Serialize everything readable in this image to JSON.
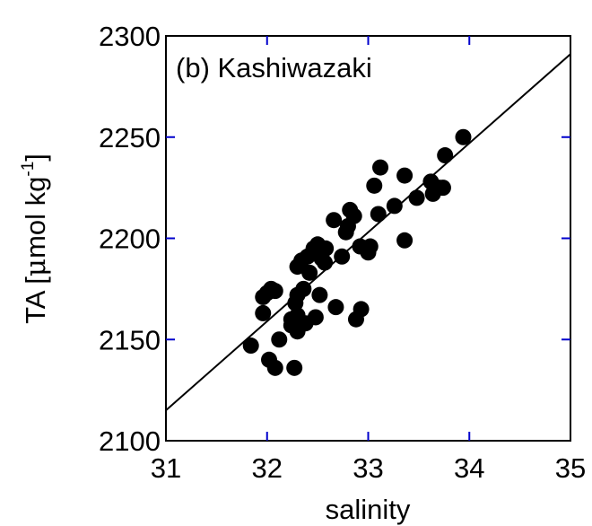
{
  "chart_data": {
    "type": "scatter",
    "panel_label": "(b) Kashiwazaki",
    "xlabel": "salinity",
    "ylabel_main": "TA [",
    "ylabel_mu": "μ",
    "ylabel_unit": "mol kg",
    "ylabel_sup": "-1",
    "ylabel_close": "]",
    "xlim": [
      31,
      35
    ],
    "ylim": [
      2100,
      2300
    ],
    "xticks": [
      31,
      32,
      33,
      34,
      35
    ],
    "yticks": [
      2100,
      2150,
      2200,
      2250,
      2300
    ],
    "xtick_labels": [
      "31",
      "32",
      "33",
      "34",
      "35"
    ],
    "ytick_labels": [
      "2100",
      "2150",
      "2200",
      "2250",
      "2300"
    ],
    "grid": false,
    "point_color": "#000000",
    "tick_color": "#0000cc",
    "points": [
      {
        "x": 31.84,
        "y": 2147
      },
      {
        "x": 31.96,
        "y": 2163
      },
      {
        "x": 31.96,
        "y": 2171
      },
      {
        "x": 32.0,
        "y": 2173
      },
      {
        "x": 32.04,
        "y": 2175
      },
      {
        "x": 32.08,
        "y": 2174
      },
      {
        "x": 32.02,
        "y": 2140
      },
      {
        "x": 32.08,
        "y": 2136
      },
      {
        "x": 32.12,
        "y": 2150
      },
      {
        "x": 32.24,
        "y": 2157
      },
      {
        "x": 32.24,
        "y": 2160
      },
      {
        "x": 32.3,
        "y": 2162
      },
      {
        "x": 32.28,
        "y": 2168
      },
      {
        "x": 32.3,
        "y": 2172
      },
      {
        "x": 32.27,
        "y": 2136
      },
      {
        "x": 32.3,
        "y": 2154
      },
      {
        "x": 32.36,
        "y": 2175
      },
      {
        "x": 32.38,
        "y": 2158
      },
      {
        "x": 32.42,
        "y": 2183
      },
      {
        "x": 32.3,
        "y": 2186
      },
      {
        "x": 32.34,
        "y": 2189
      },
      {
        "x": 32.4,
        "y": 2191
      },
      {
        "x": 32.46,
        "y": 2195
      },
      {
        "x": 32.5,
        "y": 2197
      },
      {
        "x": 32.48,
        "y": 2161
      },
      {
        "x": 32.52,
        "y": 2172
      },
      {
        "x": 32.54,
        "y": 2190
      },
      {
        "x": 32.58,
        "y": 2195
      },
      {
        "x": 32.57,
        "y": 2188
      },
      {
        "x": 32.68,
        "y": 2166
      },
      {
        "x": 32.66,
        "y": 2209
      },
      {
        "x": 32.74,
        "y": 2191
      },
      {
        "x": 32.78,
        "y": 2203
      },
      {
        "x": 32.8,
        "y": 2206
      },
      {
        "x": 32.82,
        "y": 2214
      },
      {
        "x": 32.86,
        "y": 2211
      },
      {
        "x": 32.88,
        "y": 2160
      },
      {
        "x": 32.93,
        "y": 2165
      },
      {
        "x": 32.92,
        "y": 2196
      },
      {
        "x": 33.0,
        "y": 2193
      },
      {
        "x": 33.02,
        "y": 2196
      },
      {
        "x": 33.06,
        "y": 2226
      },
      {
        "x": 33.1,
        "y": 2212
      },
      {
        "x": 33.12,
        "y": 2235
      },
      {
        "x": 33.26,
        "y": 2216
      },
      {
        "x": 33.36,
        "y": 2231
      },
      {
        "x": 33.36,
        "y": 2199
      },
      {
        "x": 33.48,
        "y": 2220
      },
      {
        "x": 33.62,
        "y": 2228
      },
      {
        "x": 33.64,
        "y": 2222
      },
      {
        "x": 33.7,
        "y": 2225
      },
      {
        "x": 33.74,
        "y": 2225
      },
      {
        "x": 33.76,
        "y": 2241
      },
      {
        "x": 33.94,
        "y": 2250
      }
    ],
    "regression_line": {
      "x": [
        31,
        35
      ],
      "y": [
        2115,
        2291
      ]
    }
  }
}
